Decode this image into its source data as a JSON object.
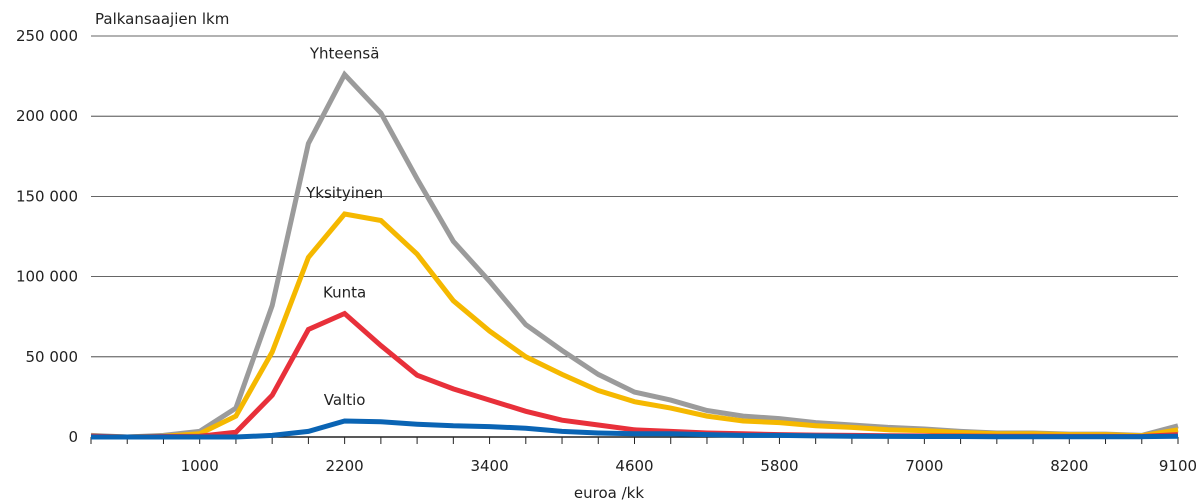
{
  "chart_data": {
    "type": "line",
    "ylabel": "Palkansaajien  lkm",
    "xlabel": "euroa /kk",
    "ylim": [
      0,
      250000
    ],
    "xlim": [
      100,
      9100
    ],
    "y_ticks": [
      0,
      50000,
      100000,
      150000,
      200000,
      250000
    ],
    "y_tick_labels": [
      "0",
      "50 000",
      "100 000",
      "150 000",
      "200 000",
      "250 000"
    ],
    "x_tick_labels": [
      "1000",
      "2200",
      "3400",
      "4600",
      "5800",
      "7000",
      "8200",
      "9100"
    ],
    "x_tick_values": [
      1000,
      2200,
      3400,
      4600,
      5800,
      7000,
      8200,
      9100
    ],
    "x": [
      100,
      400,
      700,
      1000,
      1300,
      1600,
      1900,
      2200,
      2500,
      2800,
      3100,
      3400,
      3700,
      4000,
      4300,
      4600,
      4900,
      5200,
      5500,
      5800,
      6100,
      6400,
      6700,
      7000,
      7300,
      7600,
      7900,
      8200,
      8500,
      8800,
      9100
    ],
    "grid": true,
    "series": [
      {
        "name": "Yhteensä",
        "color": "#9b9b9b",
        "values": [
          1000,
          0,
          1000,
          3500,
          18000,
          82000,
          183000,
          226000,
          202000,
          161000,
          122000,
          97000,
          70000,
          54000,
          39000,
          28000,
          23000,
          16500,
          13000,
          11500,
          9000,
          7500,
          6000,
          5000,
          3500,
          2500,
          2500,
          1800,
          1800,
          1000,
          7000
        ]
      },
      {
        "name": "Yksityinen",
        "color": "#f5b800",
        "values": [
          500,
          0,
          500,
          2000,
          13000,
          53000,
          112000,
          139000,
          135000,
          114000,
          85000,
          66000,
          50000,
          39000,
          29000,
          22000,
          18000,
          13000,
          10000,
          9000,
          7000,
          6000,
          4500,
          4000,
          2800,
          2000,
          2000,
          1500,
          1500,
          800,
          4500
        ]
      },
      {
        "name": "Kunta",
        "color": "#e8303a",
        "values": [
          500,
          0,
          300,
          500,
          3000,
          26000,
          67000,
          77000,
          57000,
          38500,
          30000,
          23000,
          16000,
          10500,
          7500,
          4500,
          3500,
          2500,
          2000,
          1500,
          1200,
          1000,
          800,
          700,
          600,
          500,
          500,
          400,
          400,
          300,
          1500
        ]
      },
      {
        "name": "Valtio",
        "color": "#0a64b4",
        "values": [
          0,
          0,
          0,
          0,
          0,
          1000,
          3500,
          10000,
          9500,
          8000,
          7000,
          6500,
          5500,
          3500,
          2500,
          2000,
          2000,
          1500,
          1000,
          1000,
          700,
          500,
          400,
          300,
          300,
          200,
          200,
          200,
          200,
          200,
          500
        ]
      }
    ]
  }
}
